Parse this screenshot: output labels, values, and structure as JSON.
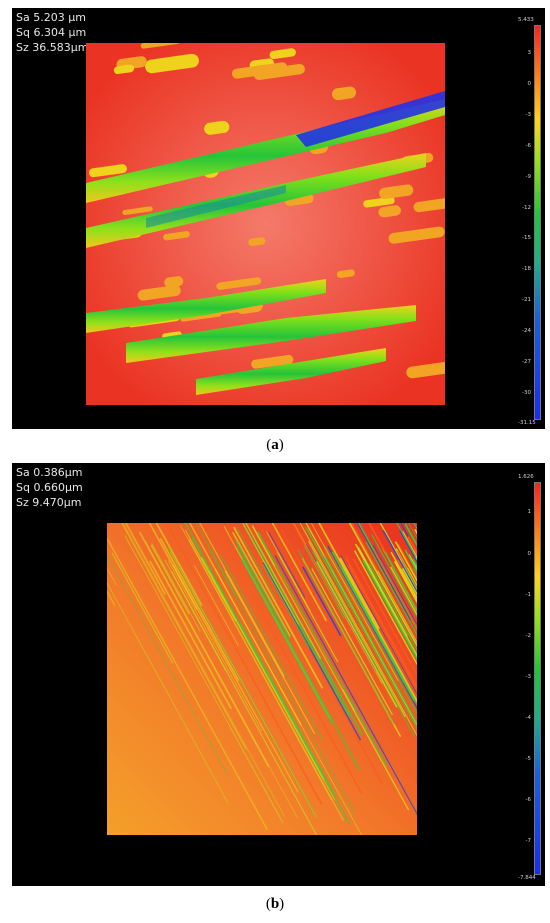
{
  "panel_a": {
    "stats": [
      "Sa 5.203  µm",
      "Sq 6.304  µm",
      "Sz 36.583µm"
    ],
    "scale_max": "5.433",
    "scale_min": "-31.15",
    "ticks": [
      "3",
      "0",
      "-3",
      "-6",
      "-9",
      "-12",
      "-15",
      "-18",
      "-21",
      "-24",
      "-27",
      "-30"
    ],
    "caption_letter": "a"
  },
  "panel_b": {
    "stats": [
      "Sa 0.386µm",
      "Sq 0.660µm",
      "Sz 9.470µm"
    ],
    "scale_max": "1.626",
    "scale_min": "-7.844",
    "ticks": [
      "1",
      "0",
      "-1",
      "-2",
      "-3",
      "-4",
      "-5",
      "-6",
      "-7"
    ],
    "caption_letter": "b"
  },
  "colors": {
    "surface_red": "#ee3a2a",
    "surface_orange": "#f29a2a",
    "green": "#2fd23a",
    "blue": "#2244e0",
    "yellow": "#e8d21a"
  }
}
